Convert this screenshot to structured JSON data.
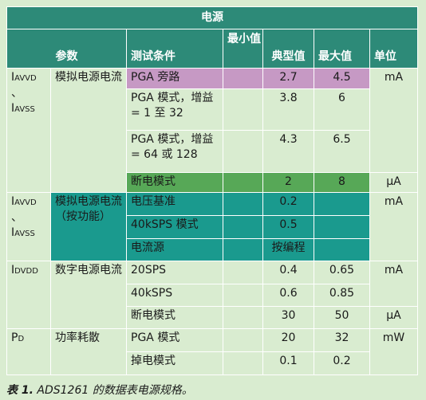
{
  "table": {
    "title": "电源",
    "headers": {
      "param": "参数",
      "condition": "测试条件",
      "min": "最小值",
      "typ": "典型值",
      "max": "最大值",
      "unit": "单位"
    },
    "group1": {
      "symbol_main1": "I",
      "symbol_sub1": "AVVD",
      "symbol_sep": "、",
      "symbol_main2": "I",
      "symbol_sub2": "AVSS",
      "param": "模拟电源电流",
      "rows": [
        {
          "condition": "PGA 旁路",
          "min": "",
          "typ": "2.7",
          "max": "4.5",
          "unit": "mA"
        },
        {
          "condition": "PGA 模式，增益 = 1 至 32",
          "min": "",
          "typ": "3.8",
          "max": "6",
          "unit": ""
        },
        {
          "condition": "PGA 模式，增益 = 64 或 128",
          "min": "",
          "typ": "4.3",
          "max": "6.5",
          "unit": ""
        },
        {
          "condition": "断电模式",
          "min": "",
          "typ": "2",
          "max": "8",
          "unit": "μA"
        }
      ]
    },
    "group2": {
      "symbol_main1": "I",
      "symbol_sub1": "AVVD",
      "symbol_sep": "、",
      "symbol_main2": "I",
      "symbol_sub2": "AVSS",
      "param": "模拟电源电流（按功能）",
      "unit": "mA",
      "rows": [
        {
          "condition": "电压基准",
          "min": "",
          "typ": "0.2",
          "max": ""
        },
        {
          "condition": "40kSPS 模式",
          "min": "",
          "typ": "0.5",
          "max": ""
        },
        {
          "condition": "电流源",
          "min": "",
          "typ": "按编程",
          "max": ""
        }
      ]
    },
    "group3": {
      "symbol_main": "I",
      "symbol_sub": "DVDD",
      "param": "数字电源电流",
      "rows": [
        {
          "condition": "20SPS",
          "min": "",
          "typ": "0.4",
          "max": "0.65",
          "unit": "mA"
        },
        {
          "condition": "40kSPS",
          "min": "",
          "typ": "0.6",
          "max": "0.85",
          "unit": ""
        },
        {
          "condition": "断电模式",
          "min": "",
          "typ": "30",
          "max": "50",
          "unit": "μA"
        }
      ]
    },
    "group4": {
      "symbol_main": "P",
      "symbol_sub": "D",
      "param": "功率耗散",
      "unit": "mW",
      "rows": [
        {
          "condition": "PGA 模式",
          "min": "",
          "typ": "20",
          "max": "32"
        },
        {
          "condition": "掉电模式",
          "min": "",
          "typ": "0.1",
          "max": "0.2"
        }
      ]
    }
  },
  "caption": {
    "label": "表 1.",
    "text": " ADS1261 的数据表电源规格。"
  }
}
